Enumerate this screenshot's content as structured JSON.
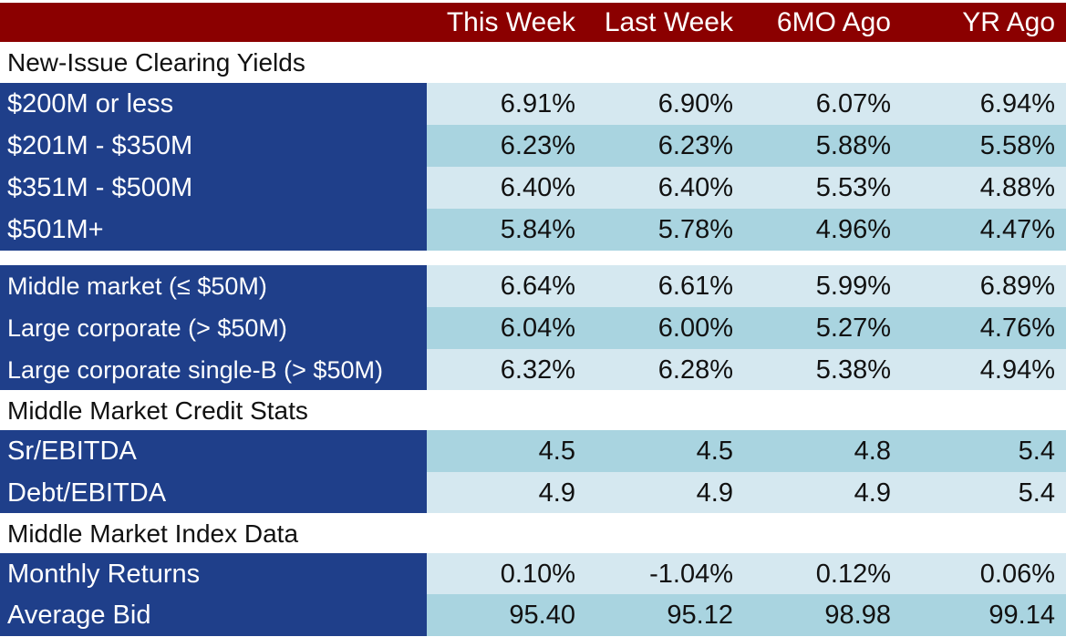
{
  "header": {
    "columns": [
      "This Week",
      "Last Week",
      "6MO Ago",
      "YR Ago"
    ]
  },
  "sections": {
    "new_issue": {
      "title": "New-Issue Clearing Yields"
    },
    "credit_stats": {
      "title": "Middle Market Credit Stats"
    },
    "index_data": {
      "title": "Middle Market Index Data"
    }
  },
  "rows": {
    "r1": {
      "label": "$200M or less",
      "values": [
        "6.91%",
        "6.90%",
        "6.07%",
        "6.94%"
      ]
    },
    "r2": {
      "label": "$201M - $350M",
      "values": [
        "6.23%",
        "6.23%",
        "5.88%",
        "5.58%"
      ]
    },
    "r3": {
      "label": "$351M - $500M",
      "values": [
        "6.40%",
        "6.40%",
        "5.53%",
        "4.88%"
      ]
    },
    "r4": {
      "label": "$501M+",
      "values": [
        "5.84%",
        "5.78%",
        "4.96%",
        "4.47%"
      ]
    },
    "r5": {
      "label": "Middle market (≤ $50M)",
      "values": [
        "6.64%",
        "6.61%",
        "5.99%",
        "6.89%"
      ]
    },
    "r6": {
      "label": "Large corporate (> $50M)",
      "values": [
        "6.04%",
        "6.00%",
        "5.27%",
        "4.76%"
      ]
    },
    "r7": {
      "label": "Large corporate single-B (> $50M)",
      "values": [
        "6.32%",
        "6.28%",
        "5.38%",
        "4.94%"
      ]
    },
    "r8": {
      "label": "Sr/EBITDA",
      "values": [
        "4.5",
        "4.5",
        "4.8",
        "5.4"
      ]
    },
    "r9": {
      "label": "Debt/EBITDA",
      "values": [
        "4.9",
        "4.9",
        "4.9",
        "5.4"
      ]
    },
    "r10": {
      "label": "Monthly Returns",
      "values": [
        "0.10%",
        "-1.04%",
        "0.12%",
        "0.06%"
      ]
    },
    "r11": {
      "label": "Average Bid",
      "values": [
        "95.40",
        "95.12",
        "98.98",
        "99.14"
      ]
    }
  },
  "colors": {
    "header_bg": "#8b0000",
    "label_bg": "#1f3f8a",
    "row_light": "#d5e8f0",
    "row_dark": "#a9d4e0"
  }
}
